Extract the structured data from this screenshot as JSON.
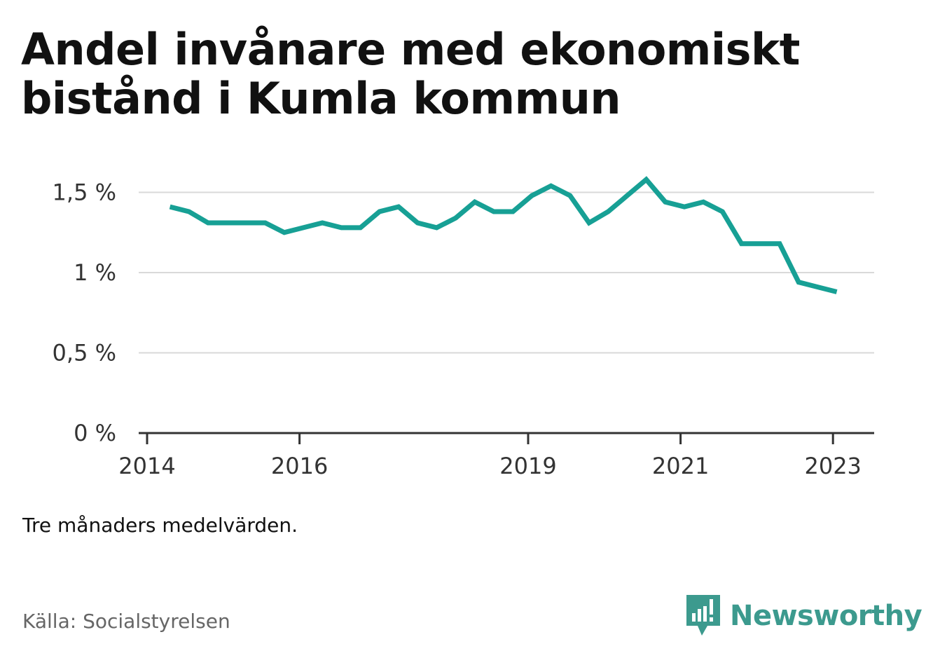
{
  "title": "Andel invånare med ekonomiskt bistånd i Kumla kommun",
  "note": "Tre månaders medelvärden.",
  "source": "Källa: Socialstyrelsen",
  "brand": {
    "name": "Newsworthy",
    "color": "#3c9a8e"
  },
  "chart_data": {
    "type": "line",
    "title": "Andel invånare med ekonomiskt bistånd i Kumla kommun",
    "xlabel": "",
    "ylabel": "",
    "ylim": [
      0,
      1.6
    ],
    "xlim": [
      2014,
      2023.5
    ],
    "grid": true,
    "line_color": "#17a095",
    "y_ticks": [
      {
        "value": 0,
        "label": "0 %"
      },
      {
        "value": 0.5,
        "label": "0,5 %"
      },
      {
        "value": 1,
        "label": "1 %"
      },
      {
        "value": 1.5,
        "label": "1,5 %"
      }
    ],
    "x_ticks": [
      {
        "value": 2014,
        "label": "2014"
      },
      {
        "value": 2016,
        "label": "2016"
      },
      {
        "value": 2019,
        "label": "2019"
      },
      {
        "value": 2021,
        "label": "2021"
      },
      {
        "value": 2023,
        "label": "2023"
      }
    ],
    "series": [
      {
        "x": [
          2014.3,
          2014.55,
          2014.8,
          2015.05,
          2015.3,
          2015.55,
          2015.8,
          2016.05,
          2016.3,
          2016.55,
          2016.8,
          2017.05,
          2017.3,
          2017.55,
          2017.8,
          2018.05,
          2018.3,
          2018.55,
          2018.8,
          2019.05,
          2019.3,
          2019.55,
          2019.8,
          2020.05,
          2020.3,
          2020.55,
          2020.8,
          2021.05,
          2021.3,
          2021.55,
          2021.8,
          2022.05,
          2022.3,
          2022.55,
          2022.8,
          2023.05
        ],
        "values": [
          1.41,
          1.38,
          1.31,
          1.31,
          1.31,
          1.31,
          1.25,
          1.28,
          1.31,
          1.28,
          1.28,
          1.38,
          1.41,
          1.31,
          1.28,
          1.34,
          1.44,
          1.38,
          1.38,
          1.48,
          1.54,
          1.48,
          1.31,
          1.38,
          1.48,
          1.58,
          1.44,
          1.41,
          1.44,
          1.38,
          1.18,
          1.18,
          1.18,
          0.94,
          0.91,
          0.88
        ]
      }
    ]
  }
}
